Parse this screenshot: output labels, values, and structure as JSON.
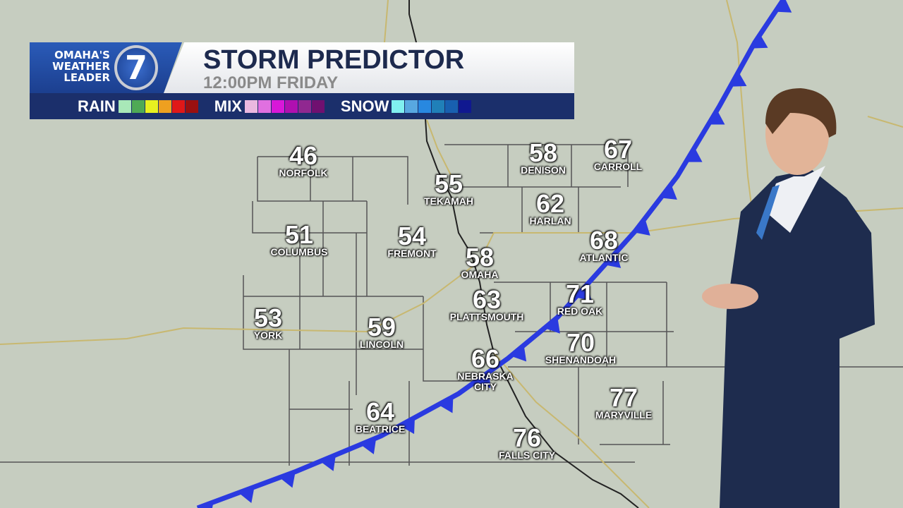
{
  "logo": {
    "line1": "OMAHA'S",
    "line2": "WEATHER",
    "line3": "LEADER",
    "channel": "7"
  },
  "title": "STORM PREDICTOR",
  "subtitle": "12:00PM FRIDAY",
  "legend": [
    {
      "label": "RAIN",
      "colors": [
        "#a8e8b8",
        "#4faa55",
        "#e8f020",
        "#eea020",
        "#e01818",
        "#9a1010"
      ]
    },
    {
      "label": "MIX",
      "colors": [
        "#eab8e0",
        "#e070e0",
        "#d818d8",
        "#b010b0",
        "#902890",
        "#701070"
      ]
    },
    {
      "label": "SNOW",
      "colors": [
        "#80f0f0",
        "#58a8e0",
        "#2888e0",
        "#2080b8",
        "#1860b0",
        "#101890"
      ]
    }
  ],
  "front_color": "#2a3ae0",
  "cities": [
    {
      "name": "NORFOLK",
      "temp": "46"
    },
    {
      "name": "TEKAMAH",
      "temp": "55"
    },
    {
      "name": "DENISON",
      "temp": "58"
    },
    {
      "name": "CARROLL",
      "temp": "67"
    },
    {
      "name": "HARLAN",
      "temp": "62"
    },
    {
      "name": "COLUMBUS",
      "temp": "51"
    },
    {
      "name": "FREMONT",
      "temp": "54"
    },
    {
      "name": "OMAHA",
      "temp": "58"
    },
    {
      "name": "ATLANTIC",
      "temp": "68"
    },
    {
      "name": "PLATTSMOUTH",
      "temp": "63"
    },
    {
      "name": "RED OAK",
      "temp": "71"
    },
    {
      "name": "YORK",
      "temp": "53"
    },
    {
      "name": "LINCOLN",
      "temp": "59"
    },
    {
      "name": "NEBRASKA CITY",
      "temp": "66"
    },
    {
      "name": "SHENANDOAH",
      "temp": "70"
    },
    {
      "name": "MARYVILLE",
      "temp": "77"
    },
    {
      "name": "BEATRICE",
      "temp": "64"
    },
    {
      "name": "FALLS CITY",
      "temp": "76"
    }
  ]
}
